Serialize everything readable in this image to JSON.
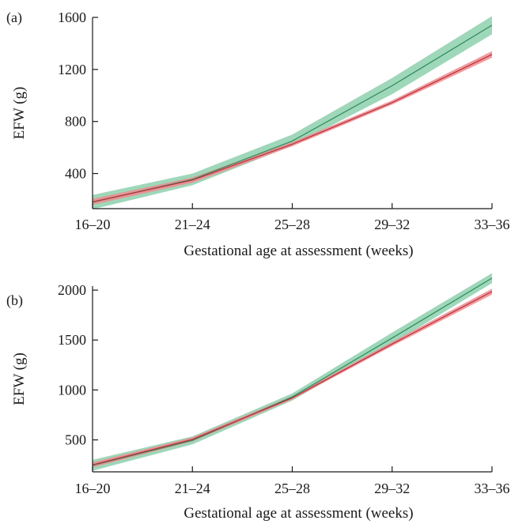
{
  "colors": {
    "green_band": "#7dc9a2",
    "green_line": "#2f8a5c",
    "red_band": "#f08a8f",
    "red_line": "#b53239",
    "axis": "#1a1a1a"
  },
  "chart_data": [
    {
      "type": "line",
      "panel_label": "(a)",
      "xlabel": "Gestational age at assessment (weeks)",
      "ylabel": "EFW (g)",
      "categories": [
        "16–20",
        "21–24",
        "25–28",
        "29–32",
        "33–36"
      ],
      "yticks": [
        400,
        800,
        1200,
        1600
      ],
      "ylim": [
        130,
        1600
      ],
      "series": [
        {
          "color": "green",
          "values": [
            180,
            355,
            650,
            1075,
            1540
          ],
          "lower": [
            125,
            310,
            615,
            1010,
            1470
          ],
          "upper": [
            235,
            400,
            700,
            1135,
            1610
          ]
        },
        {
          "color": "red",
          "values": [
            182,
            350,
            625,
            945,
            1315
          ],
          "lower": [
            160,
            330,
            610,
            930,
            1290
          ],
          "upper": [
            205,
            370,
            642,
            962,
            1340
          ]
        }
      ]
    },
    {
      "type": "line",
      "panel_label": "(b)",
      "xlabel": "Gestational age at assessment (weeks)",
      "ylabel": "EFW (g)",
      "categories": [
        "16–20",
        "21–24",
        "25–28",
        "29–32",
        "33–36"
      ],
      "yticks": [
        500,
        1000,
        1500,
        2000
      ],
      "ylim": [
        180,
        2040
      ],
      "series": [
        {
          "color": "green",
          "values": [
            245,
            495,
            930,
            1520,
            2120
          ],
          "lower": [
            190,
            455,
            895,
            1465,
            2070
          ],
          "upper": [
            300,
            535,
            965,
            1575,
            2170
          ]
        },
        {
          "color": "red",
          "values": [
            250,
            505,
            920,
            1460,
            1985
          ],
          "lower": [
            225,
            485,
            905,
            1440,
            1955
          ],
          "upper": [
            275,
            525,
            938,
            1482,
            2015
          ]
        }
      ]
    }
  ]
}
